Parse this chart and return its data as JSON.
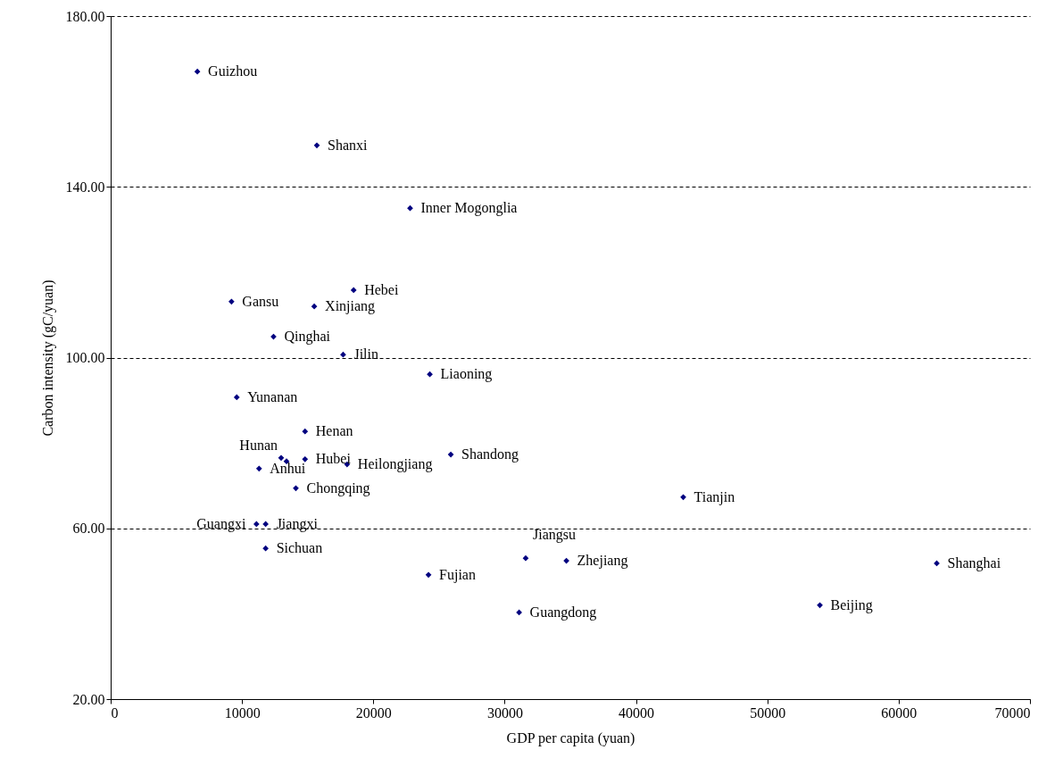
{
  "chart_data": {
    "type": "scatter",
    "xlabel": "GDP per capita (yuan)",
    "ylabel": "Carbon intensity (gC/yuan)",
    "xlim": [
      0,
      70000
    ],
    "xticks": [
      0,
      10000,
      20000,
      30000,
      40000,
      50000,
      60000,
      70000
    ],
    "ylim": [
      20,
      180
    ],
    "yticks": [
      {
        "value": 20,
        "label": "20.00"
      },
      {
        "value": 60,
        "label": "60.00"
      },
      {
        "value": 100,
        "label": "100.00"
      },
      {
        "value": 140,
        "label": "140.00"
      },
      {
        "value": 180,
        "label": "180.00"
      }
    ],
    "grid": "y",
    "marker": "diamond",
    "x": [
      6600,
      15700,
      22800,
      18500,
      9200,
      15500,
      12400,
      17700,
      24300,
      9600,
      14800,
      12980,
      13390,
      14800,
      18000,
      11300,
      25900,
      14100,
      43600,
      11100,
      11800,
      11800,
      31600,
      34700,
      62900,
      24200,
      31100,
      54000
    ],
    "series": [
      {
        "color": "#000080",
        "values": [
          167,
          149.7,
          135,
          115.8,
          113.1,
          112,
          104.9,
          100.7,
          96.1,
          90.7,
          82.7,
          76.5,
          75.7,
          76.2,
          75,
          74,
          77.3,
          69.4,
          67.3,
          61,
          61,
          55.3,
          53,
          52.4,
          51.8,
          49.1,
          40.3,
          42
        ]
      }
    ],
    "annotations": [
      {
        "text": "Guizhou",
        "x": 6600,
        "y": 167
      },
      {
        "text": "Shanxi",
        "x": 15700,
        "y": 149.7
      },
      {
        "text": "Inner Mogonglia",
        "x": 22800,
        "y": 135
      },
      {
        "text": "Hebei",
        "x": 18500,
        "y": 115.8
      },
      {
        "text": "Gansu",
        "x": 9200,
        "y": 113.1
      },
      {
        "text": "Xinjiang",
        "x": 15500,
        "y": 112
      },
      {
        "text": "Qinghai",
        "x": 12400,
        "y": 104.9
      },
      {
        "text": "Jilin",
        "x": 17700,
        "y": 100.7
      },
      {
        "text": "Liaoning",
        "x": 24300,
        "y": 96.1
      },
      {
        "text": "Yunanan",
        "x": 9600,
        "y": 90.7
      },
      {
        "text": "Henan",
        "x": 14800,
        "y": 82.7
      },
      {
        "text": "Hunan",
        "x": 12980,
        "y": 76.5
      },
      {
        "text": "Hubei",
        "x": 14800,
        "y": 76.2
      },
      {
        "text": "Heilongjiang",
        "x": 18000,
        "y": 75
      },
      {
        "text": "Anhui",
        "x": 11300,
        "y": 74
      },
      {
        "text": "Shandong",
        "x": 25900,
        "y": 77.3
      },
      {
        "text": "Chongqing",
        "x": 14100,
        "y": 69.4
      },
      {
        "text": "Tianjin",
        "x": 43600,
        "y": 67.3
      },
      {
        "text": "Guangxi",
        "x": 11100,
        "y": 61
      },
      {
        "text": "Jiangxi",
        "x": 11800,
        "y": 61
      },
      {
        "text": "Sichuan",
        "x": 11800,
        "y": 55.3
      },
      {
        "text": "Jiangsu",
        "x": 31600,
        "y": 53
      },
      {
        "text": "Zhejiang",
        "x": 34700,
        "y": 52.4
      },
      {
        "text": "Shanghai",
        "x": 62900,
        "y": 51.8
      },
      {
        "text": "Fujian",
        "x": 24200,
        "y": 49.1
      },
      {
        "text": "Guangdong",
        "x": 31100,
        "y": 40.3
      },
      {
        "text": "Beijing",
        "x": 54000,
        "y": 42
      }
    ]
  }
}
